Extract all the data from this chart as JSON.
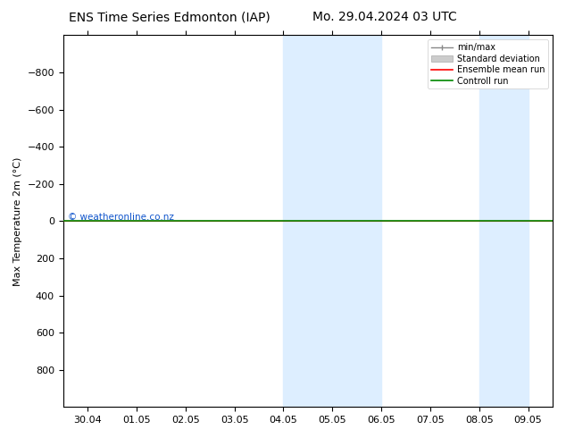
{
  "title_left": "ENS Time Series Edmonton (IAP)",
  "title_right": "Mo. 29.04.2024 03 UTC",
  "ylabel": "Max Temperature 2m (°C)",
  "ylim": [
    -1000,
    1000
  ],
  "yticks": [
    -800,
    -600,
    -400,
    -200,
    0,
    200,
    400,
    600,
    800
  ],
  "xtick_labels": [
    "30.04",
    "01.05",
    "02.05",
    "03.05",
    "04.05",
    "05.05",
    "06.05",
    "07.05",
    "08.05",
    "09.05"
  ],
  "shaded_regions": [
    {
      "xmin": 4.0,
      "xmax": 5.0,
      "color": "#ddeeff"
    },
    {
      "xmin": 5.0,
      "xmax": 6.0,
      "color": "#ddeeff"
    },
    {
      "xmin": 8.0,
      "xmax": 9.0,
      "color": "#ddeeff"
    }
  ],
  "watermark": "© weatheronline.co.nz",
  "watermark_color": "#1155cc",
  "ensemble_mean_color": "#ff0000",
  "control_run_color": "#008800",
  "std_dev_color": "#cccccc",
  "minmax_color": "#888888",
  "horizontal_line_y": 0,
  "legend_entries": [
    "min/max",
    "Standard deviation",
    "Ensemble mean run",
    "Controll run"
  ],
  "bg_color": "#ffffff",
  "plot_bg_color": "#ffffff",
  "border_color": "#000000",
  "invert_yaxis": true
}
